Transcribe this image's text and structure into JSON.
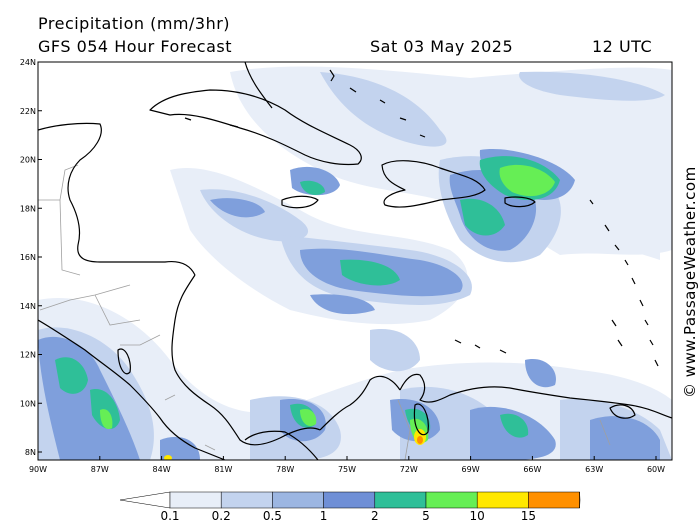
{
  "header": {
    "line1": "Precipitation (mm/3hr)",
    "model": "GFS 054 Hour Forecast",
    "valid_date": "Sat 03 May 2025",
    "valid_time": "12 UTC"
  },
  "credit": "© www.PassageWeather.com",
  "axes": {
    "lat_labels": [
      "24N",
      "22N",
      "20N",
      "18N",
      "16N",
      "14N",
      "12N",
      "10N",
      "8N"
    ],
    "lon_labels": [
      "90W",
      "87W",
      "84W",
      "81W",
      "78W",
      "75W",
      "72W",
      "69W",
      "66W",
      "63W",
      "60W"
    ]
  },
  "colorbar": {
    "labels": [
      "0.1",
      "0.2",
      "0.5",
      "1",
      "2",
      "5",
      "10",
      "15"
    ],
    "colors": [
      "#ffffff",
      "#e8eef8",
      "#c3d3ee",
      "#9cb6e2",
      "#6f8fd6",
      "#2fbf98",
      "#66ee55",
      "#ffe800",
      "#ff9000",
      "#ee2a36"
    ]
  },
  "colors": {
    "light": "#e8eef8",
    "pale_blue": "#c3d3ee",
    "blue": "#7f9fdc",
    "teal": "#2fbf98",
    "green": "#66ee55",
    "yellow": "#ffe800",
    "orange": "#ff9000"
  }
}
